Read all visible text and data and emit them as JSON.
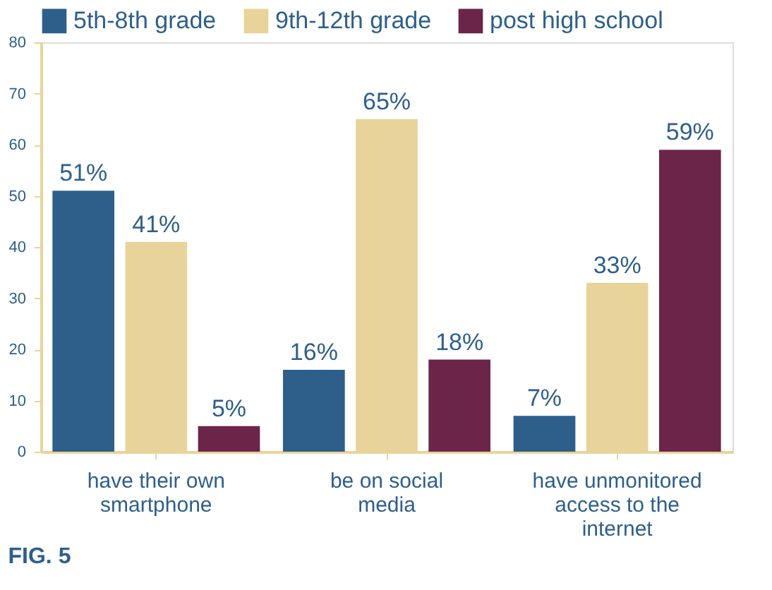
{
  "chart_data": {
    "type": "bar",
    "categories": [
      "have their own smartphone",
      "be on social media",
      "have unmonitored access to the internet"
    ],
    "series": [
      {
        "name": "5th-8th grade",
        "color": "#2e5f8a",
        "values": [
          51,
          16,
          7
        ],
        "value_labels": [
          "51%",
          "16%",
          "7%"
        ]
      },
      {
        "name": "9th-12th grade",
        "color": "#e8d49a",
        "values": [
          41,
          65,
          33
        ],
        "value_labels": [
          "41%",
          "65%",
          "33%"
        ]
      },
      {
        "name": "post high school",
        "color": "#6b2549",
        "values": [
          5,
          18,
          59
        ],
        "value_labels": [
          "5%",
          "18%",
          "59%"
        ]
      }
    ],
    "ylim": [
      0,
      80
    ],
    "yticks": [
      0,
      10,
      20,
      30,
      40,
      50,
      60,
      70,
      80
    ],
    "grid": false,
    "legend": "top",
    "annotations": [
      "FIG. 5"
    ]
  }
}
